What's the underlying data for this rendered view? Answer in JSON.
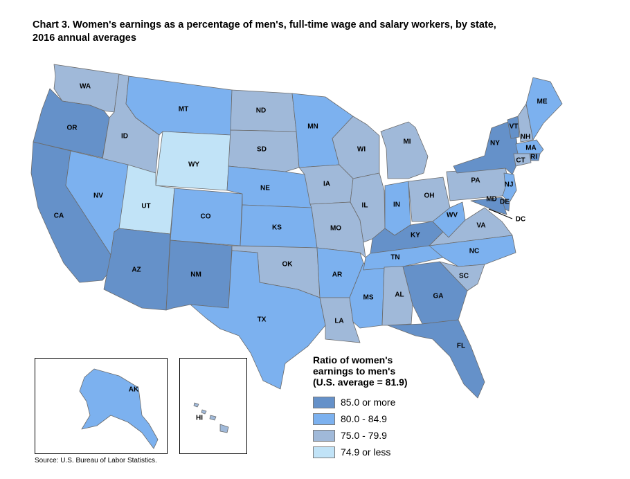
{
  "title": {
    "line1": "Chart 3. Women's earnings as a percentage of men's, full-time wage and salary workers, by state,",
    "line2": "2016 annual averages"
  },
  "legend": {
    "title_line1": "Ratio of women's",
    "title_line2": "earnings to men's",
    "title_line3": "(U.S. average = 81.9)",
    "items": [
      {
        "label": "85.0 or more",
        "color": "#6591c9"
      },
      {
        "label": "80.0 - 84.9",
        "color": "#7cb1ef"
      },
      {
        "label": "75.0 - 79.9",
        "color": "#a0b9d9"
      },
      {
        "label": "74.9 or less",
        "color": "#c1e3f7"
      }
    ]
  },
  "states": [
    {
      "abbr": "WA",
      "class": 2
    },
    {
      "abbr": "OR",
      "class": 0
    },
    {
      "abbr": "CA",
      "class": 0
    },
    {
      "abbr": "ID",
      "class": 2
    },
    {
      "abbr": "NV",
      "class": 1
    },
    {
      "abbr": "MT",
      "class": 1
    },
    {
      "abbr": "WY",
      "class": 3
    },
    {
      "abbr": "UT",
      "class": 3
    },
    {
      "abbr": "AZ",
      "class": 0
    },
    {
      "abbr": "CO",
      "class": 1
    },
    {
      "abbr": "NM",
      "class": 0
    },
    {
      "abbr": "ND",
      "class": 2
    },
    {
      "abbr": "SD",
      "class": 2
    },
    {
      "abbr": "NE",
      "class": 1
    },
    {
      "abbr": "KS",
      "class": 1
    },
    {
      "abbr": "OK",
      "class": 2
    },
    {
      "abbr": "TX",
      "class": 1
    },
    {
      "abbr": "MN",
      "class": 1
    },
    {
      "abbr": "IA",
      "class": 2
    },
    {
      "abbr": "MO",
      "class": 2
    },
    {
      "abbr": "AR",
      "class": 1
    },
    {
      "abbr": "LA",
      "class": 2
    },
    {
      "abbr": "WI",
      "class": 2
    },
    {
      "abbr": "IL",
      "class": 2
    },
    {
      "abbr": "MS",
      "class": 1
    },
    {
      "abbr": "MI",
      "class": 2
    },
    {
      "abbr": "IN",
      "class": 1
    },
    {
      "abbr": "KY",
      "class": 0
    },
    {
      "abbr": "TN",
      "class": 1
    },
    {
      "abbr": "AL",
      "class": 2
    },
    {
      "abbr": "GA",
      "class": 0
    },
    {
      "abbr": "FL",
      "class": 0
    },
    {
      "abbr": "OH",
      "class": 2
    },
    {
      "abbr": "WV",
      "class": 1
    },
    {
      "abbr": "VA",
      "class": 2
    },
    {
      "abbr": "NC",
      "class": 1
    },
    {
      "abbr": "SC",
      "class": 2
    },
    {
      "abbr": "PA",
      "class": 2
    },
    {
      "abbr": "NY",
      "class": 0
    },
    {
      "abbr": "VT",
      "class": 0
    },
    {
      "abbr": "NH",
      "class": 2
    },
    {
      "abbr": "ME",
      "class": 1
    },
    {
      "abbr": "MA",
      "class": 1
    },
    {
      "abbr": "RI",
      "class": 0
    },
    {
      "abbr": "CT",
      "class": 2
    },
    {
      "abbr": "NJ",
      "class": 1
    },
    {
      "abbr": "DE",
      "class": 0
    },
    {
      "abbr": "MD",
      "class": 0
    },
    {
      "abbr": "DC",
      "class": 0
    },
    {
      "abbr": "AK",
      "class": 1
    },
    {
      "abbr": "HI",
      "class": 2
    }
  ],
  "source": "Source: U.S. Bureau of Labor Statistics."
}
